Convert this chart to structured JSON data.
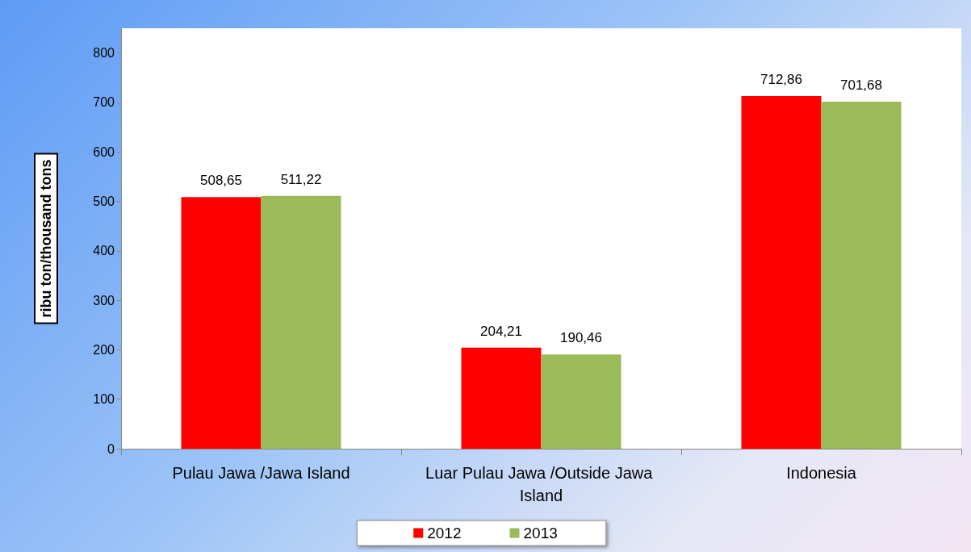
{
  "chart_data": {
    "type": "bar",
    "ylabel": "ribu ton/thousand tons",
    "categories": [
      "Pulau Jawa /Jawa Island",
      "Luar Pulau Jawa /Outside Jawa Island",
      "Indonesia"
    ],
    "series": [
      {
        "name": "2012",
        "color": "#ff0000",
        "values": [
          508.65,
          204.21,
          712.86
        ],
        "value_labels": [
          "508,65",
          "204,21",
          "712,86"
        ]
      },
      {
        "name": "2013",
        "color": "#9bbb59",
        "values": [
          511.22,
          190.46,
          701.68
        ],
        "value_labels": [
          "511,22",
          "190,46",
          "701,68"
        ]
      }
    ],
    "ylim": [
      0,
      850
    ],
    "yticks": [
      0,
      100,
      200,
      300,
      400,
      500,
      600,
      700,
      800
    ],
    "grid": false,
    "legend": "bottom"
  }
}
